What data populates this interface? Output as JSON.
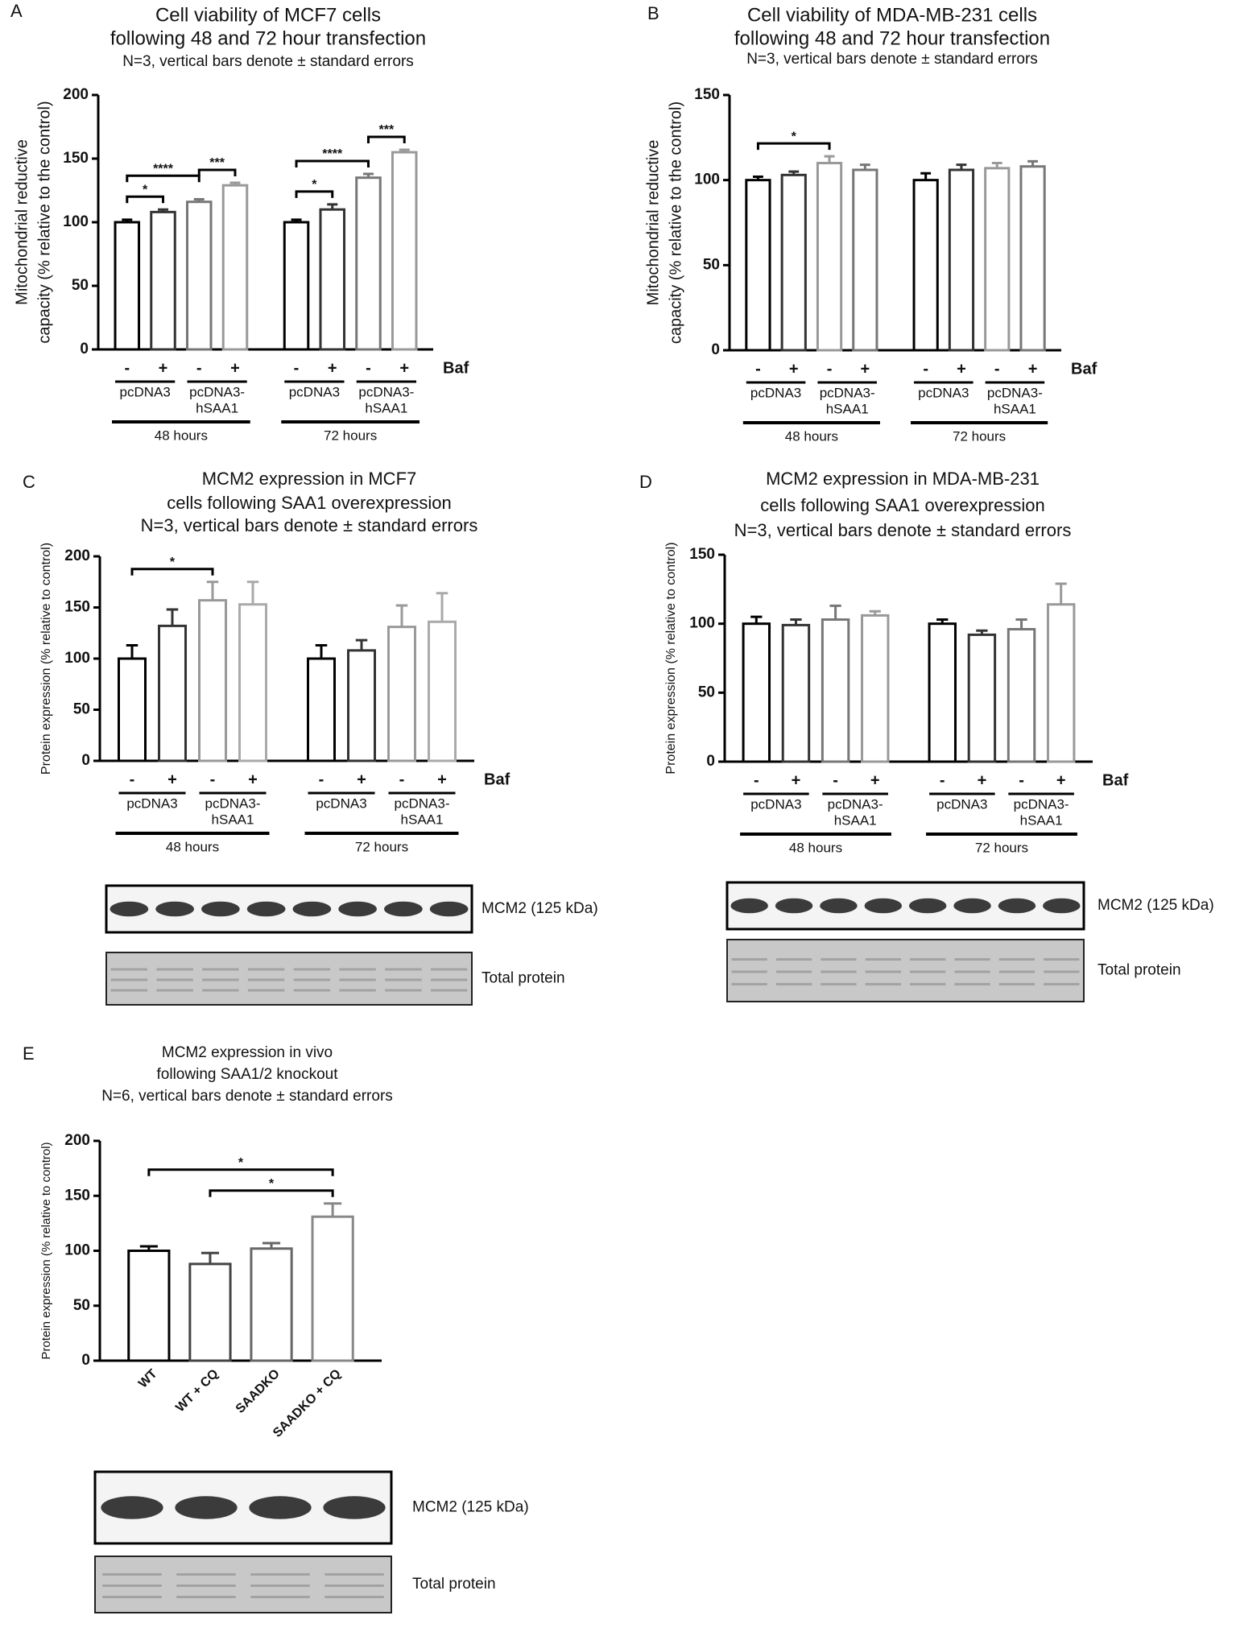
{
  "chart_data": [
    {
      "type": "bar",
      "panel": "A",
      "title": [
        "Cell viability of MCF7 cells",
        "following 48 and 72 hour transfection"
      ],
      "subtitle": "N=3, vertical bars denote ± standard errors",
      "ylabel": [
        "Mitochondrial reductive",
        "capacity (% relative to the control)"
      ],
      "categories": [
        "-",
        "+",
        "-",
        "+",
        "-",
        "+",
        "-",
        "+"
      ],
      "values": [
        100,
        108,
        116,
        129,
        100,
        110,
        135,
        155
      ],
      "errors": [
        2,
        2,
        2,
        2,
        2,
        4,
        3,
        2
      ],
      "colors": [
        "#000000",
        "#333333",
        "#777777",
        "#999999",
        "#000000",
        "#333333",
        "#777777",
        "#999999"
      ],
      "ylim": [
        0,
        200
      ],
      "yticks": [
        0,
        50,
        100,
        150,
        200
      ],
      "treatment": "Baf",
      "groups": [
        [
          "pcDNA3"
        ],
        [
          "pcDNA3-",
          "hSAA1"
        ],
        [
          "pcDNA3"
        ],
        [
          "pcDNA3-",
          "hSAA1"
        ]
      ],
      "time_groups": [
        "48 hours",
        "72 hours"
      ],
      "significance": [
        {
          "from": 0,
          "to": 1,
          "label": "*"
        },
        {
          "from": 0,
          "to": 2,
          "label": "****"
        },
        {
          "from": 2,
          "to": 3,
          "label": "***"
        },
        {
          "from": 4,
          "to": 5,
          "label": "*"
        },
        {
          "from": 4,
          "to": 6,
          "label": "****"
        },
        {
          "from": 6,
          "to": 7,
          "label": "***"
        }
      ]
    },
    {
      "type": "bar",
      "panel": "B",
      "title": [
        "Cell viability of MDA-MB-231 cells",
        "following 48 and 72 hour transfection"
      ],
      "subtitle": "N=3, vertical bars denote ± standard errors",
      "ylabel": [
        "Mitochondrial reductive",
        "capacity (% relative to the control)"
      ],
      "categories": [
        "-",
        "+",
        "-",
        "+",
        "-",
        "+",
        "-",
        "+"
      ],
      "values": [
        100,
        103,
        110,
        106,
        100,
        106,
        107,
        108
      ],
      "errors": [
        2,
        2,
        4,
        3,
        4,
        3,
        3,
        3
      ],
      "colors": [
        "#000000",
        "#333333",
        "#999999",
        "#777777",
        "#000000",
        "#333333",
        "#999999",
        "#777777"
      ],
      "ylim": [
        0,
        150
      ],
      "yticks": [
        0,
        50,
        100,
        150
      ],
      "treatment": "Baf",
      "groups": [
        [
          "pcDNA3"
        ],
        [
          "pcDNA3-",
          "hSAA1"
        ],
        [
          "pcDNA3"
        ],
        [
          "pcDNA3-",
          "hSAA1"
        ]
      ],
      "time_groups": [
        "48 hours",
        "72 hours"
      ],
      "significance": [
        {
          "from": 0,
          "to": 2,
          "label": "*"
        }
      ]
    },
    {
      "type": "bar",
      "panel": "C",
      "title": [
        "MCM2 expression in MCF7",
        "cells following SAA1 overexpression"
      ],
      "subtitle": "N=3, vertical bars denote ± standard errors",
      "ylabel": [
        "Protein expression (% relative to control)"
      ],
      "categories": [
        "-",
        "+",
        "-",
        "+",
        "-",
        "+",
        "-",
        "+"
      ],
      "values": [
        100,
        132,
        157,
        153,
        100,
        108,
        131,
        136
      ],
      "errors": [
        13,
        16,
        18,
        22,
        13,
        10,
        21,
        28
      ],
      "colors": [
        "#000000",
        "#333333",
        "#999999",
        "#aaaaaa",
        "#000000",
        "#333333",
        "#999999",
        "#aaaaaa"
      ],
      "ylim": [
        0,
        200
      ],
      "yticks": [
        0,
        50,
        100,
        150,
        200
      ],
      "treatment": "Baf",
      "groups": [
        [
          "pcDNA3"
        ],
        [
          "pcDNA3-",
          "hSAA1"
        ],
        [
          "pcDNA3"
        ],
        [
          "pcDNA3-",
          "hSAA1"
        ]
      ],
      "time_groups": [
        "48 hours",
        "72 hours"
      ],
      "significance": [
        {
          "from": 0,
          "to": 2,
          "label": "*"
        }
      ],
      "blots": [
        "MCM2 (125 kDa)",
        "Total protein"
      ]
    },
    {
      "type": "bar",
      "panel": "D",
      "title": [
        "MCM2 expression in MDA-MB-231",
        "cells following SAA1 overexpression"
      ],
      "subtitle": "N=3, vertical bars denote ± standard errors",
      "ylabel": [
        "Protein expression (% relative to control)"
      ],
      "categories": [
        "-",
        "+",
        "-",
        "+",
        "-",
        "+",
        "-",
        "+"
      ],
      "values": [
        100,
        99,
        103,
        106,
        100,
        92,
        96,
        114
      ],
      "errors": [
        5,
        4,
        10,
        3,
        3,
        3,
        7,
        15
      ],
      "colors": [
        "#000000",
        "#333333",
        "#777777",
        "#999999",
        "#000000",
        "#333333",
        "#777777",
        "#999999"
      ],
      "ylim": [
        0,
        150
      ],
      "yticks": [
        0,
        50,
        100,
        150
      ],
      "treatment": "Baf",
      "groups": [
        [
          "pcDNA3"
        ],
        [
          "pcDNA3-",
          "hSAA1"
        ],
        [
          "pcDNA3"
        ],
        [
          "pcDNA3-",
          "hSAA1"
        ]
      ],
      "time_groups": [
        "48 hours",
        "72 hours"
      ],
      "significance": [],
      "blots": [
        "MCM2 (125 kDa)",
        "Total protein"
      ]
    },
    {
      "type": "bar",
      "panel": "E",
      "title": [
        "MCM2 expression in vivo",
        "following SAA1/2 knockout"
      ],
      "subtitle": "N=6, vertical bars denote ± standard errors",
      "ylabel": [
        "Protein expression (% relative to control)"
      ],
      "categories": [
        "WT",
        "WT + CQ",
        "SAADKO",
        "SAADKO + CQ"
      ],
      "values": [
        100,
        88,
        102,
        131
      ],
      "errors": [
        4,
        10,
        5,
        12
      ],
      "colors": [
        "#000000",
        "#444444",
        "#666666",
        "#888888"
      ],
      "ylim": [
        0,
        200
      ],
      "yticks": [
        0,
        50,
        100,
        150,
        200
      ],
      "significance": [
        {
          "from": 0,
          "to": 3,
          "label": "*"
        },
        {
          "from": 1,
          "to": 3,
          "label": "*"
        }
      ],
      "blots": [
        "MCM2 (125 kDa)",
        "Total protein"
      ]
    }
  ]
}
